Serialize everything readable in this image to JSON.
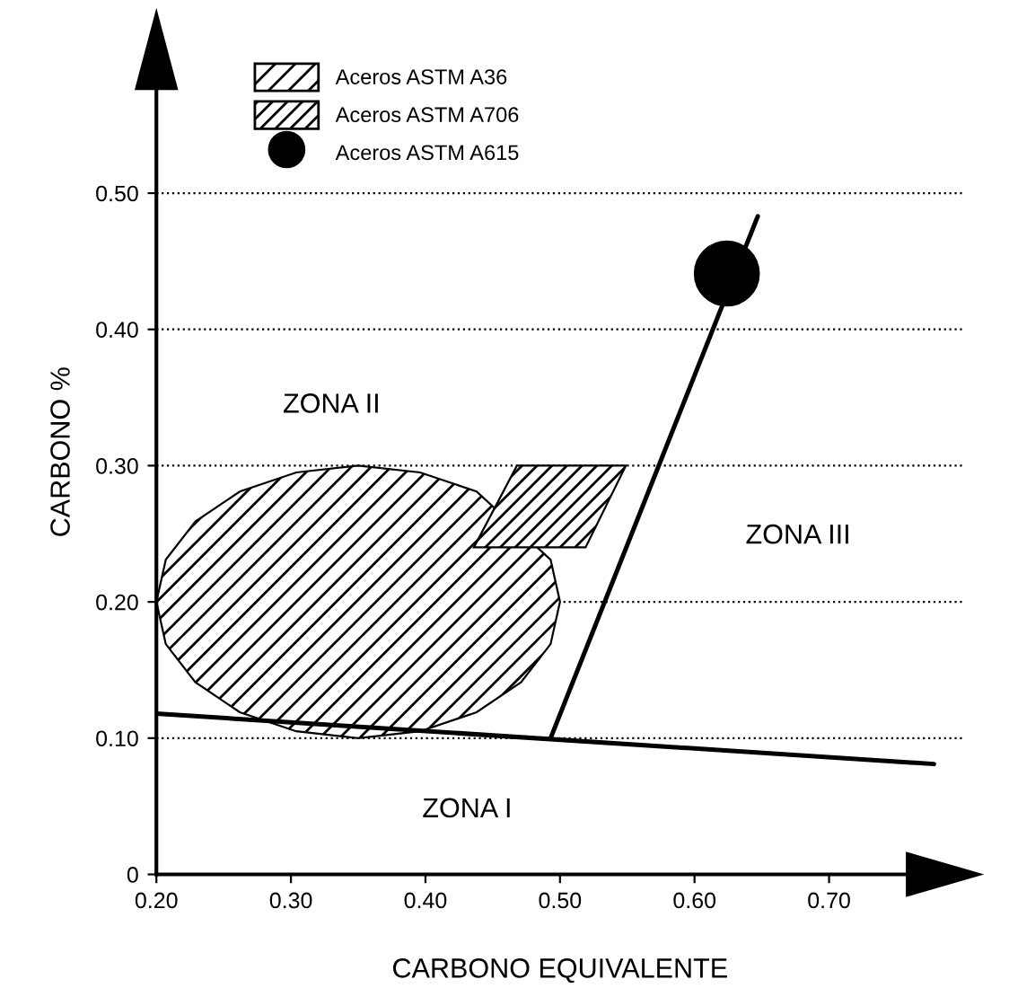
{
  "chart_data": {
    "type": "line",
    "xlabel": "CARBONO EQUIVALENTE",
    "ylabel": "CARBONO %",
    "xlim": [
      0.2,
      0.8
    ],
    "ylim": [
      0,
      0.62
    ],
    "xticks": [
      {
        "value": 0.2,
        "label": "0.20"
      },
      {
        "value": 0.3,
        "label": "0.30"
      },
      {
        "value": 0.4,
        "label": "0.40"
      },
      {
        "value": 0.5,
        "label": "0.50"
      },
      {
        "value": 0.6,
        "label": "0.60"
      },
      {
        "value": 0.7,
        "label": "0.70"
      }
    ],
    "yticks": [
      0,
      {
        "value": 0.1,
        "label": "0.10"
      },
      {
        "value": 0.2,
        "label": "0.20"
      },
      {
        "value": 0.3,
        "label": "0.30"
      },
      {
        "value": 0.4,
        "label": "0.40"
      },
      {
        "value": 0.5,
        "label": "0.50"
      }
    ],
    "grid": "y",
    "legend": "top left",
    "series": [
      {
        "color": "#000000",
        "x": [
          0.2,
          0.778
        ],
        "values": [
          0.118,
          0.081
        ]
      },
      {
        "color": "#000000",
        "x": [
          0.493,
          0.647
        ],
        "values": [
          0.1,
          0.483
        ]
      },
      {
        "type": "area",
        "name": "Aceros ASTM A36",
        "color": "#000000",
        "x": [
          0.5,
          0.493,
          0.471,
          0.438,
          0.396,
          0.35,
          0.304,
          0.262,
          0.229,
          0.207,
          0.2,
          0.207,
          0.229,
          0.262,
          0.304,
          0.35,
          0.396,
          0.438,
          0.471,
          0.493
        ],
        "values": [
          0.2,
          0.231,
          null,
          0.281,
          0.295,
          0.3,
          0.295,
          0.281,
          0.259,
          0.231,
          0.2,
          0.169,
          0.141,
          0.119,
          0.105,
          0.1,
          0.105,
          0.119,
          0.141,
          0.169
        ]
      },
      {
        "type": "area",
        "name": "Aceros ASTM A706",
        "color": "#000000",
        "x": [
          0.468,
          0.549,
          0.519,
          0.436
        ],
        "values": [
          0.3,
          0.3,
          0.24,
          0.24
        ]
      },
      {
        "type": "scatter",
        "name": "Aceros ASTM A615",
        "color": "#000000",
        "marker": "circle",
        "x": [
          0.624
        ],
        "values": [
          0.441
        ]
      }
    ],
    "annotations": [
      "ZONA I",
      "ZONA II",
      "ZONA III"
    ]
  }
}
